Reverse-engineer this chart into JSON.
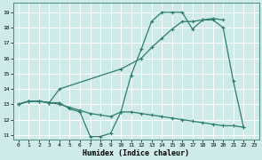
{
  "xlabel": "Humidex (Indice chaleur)",
  "bg_color": "#ceeae9",
  "grid_color": "#ffffff",
  "line_color": "#2e7d6e",
  "xlim": [
    -0.5,
    23.5
  ],
  "ylim": [
    10.7,
    19.6
  ],
  "yticks": [
    11,
    12,
    13,
    14,
    15,
    16,
    17,
    18,
    19
  ],
  "xticks": [
    0,
    1,
    2,
    3,
    4,
    5,
    6,
    7,
    8,
    9,
    10,
    11,
    12,
    13,
    14,
    15,
    16,
    17,
    18,
    19,
    20,
    21,
    22,
    23
  ],
  "series1_x": [
    0,
    1,
    2,
    3,
    4,
    5,
    6,
    7,
    8,
    9,
    10,
    11,
    12,
    13,
    14,
    15,
    16,
    17,
    18,
    19,
    20,
    21,
    22
  ],
  "series1_y": [
    13.0,
    13.2,
    13.2,
    13.1,
    13.1,
    12.7,
    12.5,
    10.9,
    10.9,
    11.1,
    12.5,
    14.9,
    16.6,
    18.4,
    19.0,
    19.0,
    19.0,
    17.9,
    18.5,
    18.5,
    18.0,
    14.5,
    11.5
  ],
  "series2_x": [
    0,
    1,
    2,
    3,
    4,
    5,
    6,
    7,
    8,
    9,
    10,
    11,
    12,
    13,
    14,
    15,
    16,
    17,
    18,
    19,
    20,
    21,
    22
  ],
  "series2_y": [
    13.0,
    13.2,
    13.2,
    13.1,
    13.0,
    12.8,
    12.6,
    12.4,
    12.3,
    12.2,
    12.5,
    12.5,
    12.4,
    12.3,
    12.2,
    12.1,
    12.0,
    11.9,
    11.8,
    11.7,
    11.6,
    11.6,
    11.5
  ],
  "series3_x": [
    0,
    1,
    2,
    3,
    4,
    10,
    12,
    13,
    14,
    15,
    16,
    17,
    18,
    19,
    20
  ],
  "series3_y": [
    13.0,
    13.2,
    13.2,
    13.1,
    14.0,
    15.3,
    16.0,
    16.7,
    17.3,
    17.9,
    18.4,
    18.4,
    18.5,
    18.6,
    18.5
  ],
  "marker_size": 3,
  "lw": 0.9
}
